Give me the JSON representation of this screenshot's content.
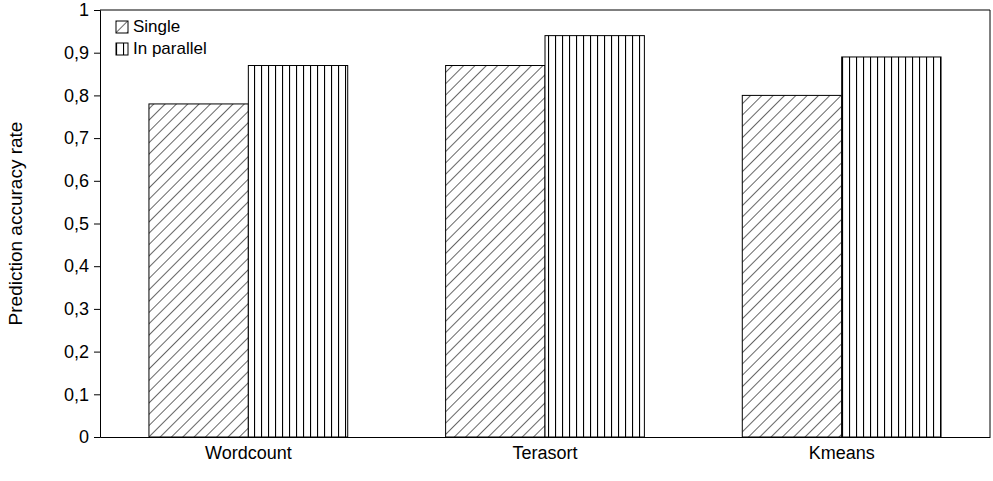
{
  "chart_data": {
    "type": "bar",
    "y_label": "Prediction accuracy rate",
    "categories": [
      "Wordcount",
      "Terasort",
      "Kmeans"
    ],
    "series": [
      {
        "name": "Single",
        "color": "#000000",
        "values": [
          0.78,
          0.87,
          0.8
        ]
      },
      {
        "name": "In parallel",
        "color": "#000000",
        "values": [
          0.87,
          0.94,
          0.89
        ]
      }
    ],
    "ylim": [
      0,
      1
    ],
    "yticks": [
      0,
      {
        "value": 0.1,
        "label": "0,1"
      },
      {
        "value": 0.2,
        "label": "0,2"
      },
      {
        "value": 0.3,
        "label": "0,3"
      },
      {
        "value": 0.4,
        "label": "0,4"
      },
      {
        "value": 0.5,
        "label": "0,5"
      },
      {
        "value": 0.6,
        "label": "0,6"
      },
      {
        "value": 0.7,
        "label": "0,7"
      },
      {
        "value": 0.8,
        "label": "0,8"
      },
      {
        "value": 0.9,
        "label": "0,9"
      },
      1
    ],
    "grid": false,
    "legend": "upper left"
  }
}
